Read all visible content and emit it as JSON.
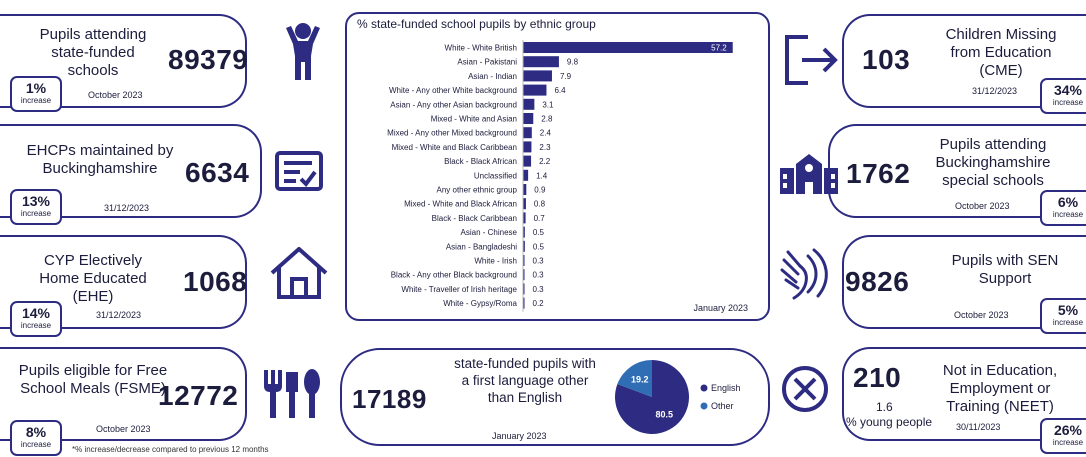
{
  "footnote": "*% increase/decrease compared to previous 12 months",
  "left_cards": [
    {
      "title": "Pupils attending state-funded schools",
      "value": "89379",
      "date": "October 2023",
      "badge_pct": "1%",
      "badge_label": "increase",
      "icon": "person-arms-raised-icon"
    },
    {
      "title": "EHCPs maintained by Buckinghamshire",
      "value": "6634",
      "date": "31/12/2023",
      "badge_pct": "13%",
      "badge_label": "increase",
      "icon": "document-check-icon"
    },
    {
      "title": "CYP Electively Home Educated (EHE)",
      "value": "1068",
      "date": "31/12/2023",
      "badge_pct": "14%",
      "badge_label": "increase",
      "icon": "house-icon"
    },
    {
      "title": "Pupils eligible for Free School Meals (FSME)",
      "value": "12772",
      "date": "October 2023",
      "badge_pct": "8%",
      "badge_label": "increase",
      "icon": "cutlery-icon"
    }
  ],
  "right_cards": [
    {
      "title": "Children Missing from Education (CME)",
      "value": "103",
      "date": "31/12/2023",
      "badge_pct": "34%",
      "badge_label": "increase",
      "icon": "exit-arrow-icon"
    },
    {
      "title": "Pupils attending Buckinghamshire special schools",
      "value": "1762",
      "date": "October 2023",
      "badge_pct": "6%",
      "badge_label": "increase",
      "icon": "school-building-icon"
    },
    {
      "title": "Pupils with SEN Support",
      "value": "9826",
      "date": "October 2023",
      "badge_pct": "5%",
      "badge_label": "increase",
      "icon": "helping-hands-icon"
    },
    {
      "title": "Not in Education, Employment or Training (NEET)",
      "value": "210",
      "sub_value": "1.6",
      "sub_label": "% young people",
      "date": "30/11/2023",
      "badge_pct": "26%",
      "badge_label": "increase",
      "icon": "circle-x-icon"
    }
  ],
  "ethnic_chart": {
    "date": "January 2023"
  },
  "language_panel": {
    "value": "17189",
    "text": "state-funded pupils with a first language other than English",
    "date": "January 2023"
  },
  "colors": {
    "navy": "#2d2c82",
    "blue": "#2f6eb5"
  },
  "chart_data": [
    {
      "type": "bar",
      "orientation": "horizontal",
      "title": "% state-funded school pupils by ethnic group",
      "categories": [
        "White - White British",
        "Asian - Pakistani",
        "Asian - Indian",
        "White - Any other White background",
        "Asian - Any other Asian background",
        "Mixed - White and Asian",
        "Mixed - Any other Mixed background",
        "Mixed - White and Black Caribbean",
        "Black - Black African",
        "Unclassified",
        "Any other ethnic group",
        "Mixed - White and Black African",
        "Black - Black Caribbean",
        "Asian - Chinese",
        "Asian - Bangladeshi",
        "White - Irish",
        "Black - Any other Black background",
        "White - Traveller of Irish heritage",
        "White - Gypsy/Roma"
      ],
      "values": [
        57.2,
        9.8,
        7.9,
        6.4,
        3.1,
        2.8,
        2.4,
        2.3,
        2.2,
        1.4,
        0.9,
        0.8,
        0.7,
        0.5,
        0.5,
        0.3,
        0.3,
        0.3,
        0.2
      ],
      "xlim": [
        0,
        60
      ],
      "color": "#2d2c82",
      "grid": false
    },
    {
      "type": "pie",
      "categories": [
        "English",
        "Other"
      ],
      "values": [
        80.5,
        19.2
      ],
      "colors": [
        "#2d2c82",
        "#2f6eb5"
      ],
      "legend": "right"
    }
  ]
}
